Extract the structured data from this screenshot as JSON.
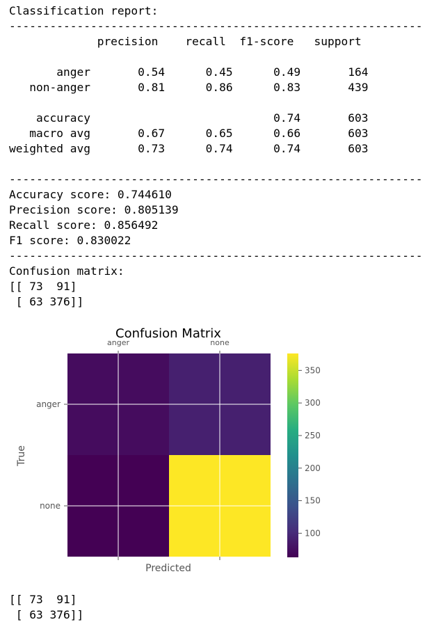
{
  "output": {
    "report_heading": "Classification report:",
    "separator": "-------------------------------------------------------------",
    "header_row": "             precision    recall  f1-score   support",
    "rows": [
      "       anger       0.54      0.45      0.49       164",
      "   non-anger       0.81      0.86      0.83       439",
      "    accuracy                           0.74       603",
      "   macro avg       0.67      0.65      0.66       603",
      "weighted avg       0.73      0.74      0.74       603"
    ],
    "scores": [
      "Accuracy score: 0.744610",
      "Precision score: 0.805139",
      "Recall score: 0.856492",
      "F1 score: 0.830022"
    ],
    "cm_heading": "Confusion matrix:",
    "cm_line1": "[[ 73  91]",
    "cm_line2": " [ 63 376]]",
    "cm_line1_bottom": "[[ 73  91]",
    "cm_line2_bottom": " [ 63 376]]"
  },
  "chart_data": {
    "type": "heatmap",
    "title": "Confusion Matrix",
    "xlabel": "Predicted",
    "ylabel": "True",
    "x_categories": [
      "anger",
      "none"
    ],
    "y_categories": [
      "anger",
      "none"
    ],
    "values": [
      [
        73,
        91
      ],
      [
        63,
        376
      ]
    ],
    "colormap": "viridis",
    "colorbar_ticks": [
      100,
      150,
      200,
      250,
      300,
      350
    ],
    "colorbar_range": [
      63,
      376
    ],
    "grid": true
  }
}
